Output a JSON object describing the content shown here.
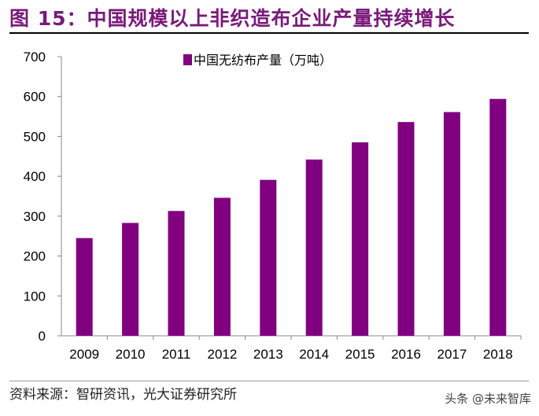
{
  "title": "图 15：中国规模以上非织造布企业产量持续增长",
  "source": "资料来源：智研资讯，光大证券研究所",
  "watermark": "头条 @未来智库",
  "chart_data": {
    "type": "bar",
    "categories": [
      "2009",
      "2010",
      "2011",
      "2012",
      "2013",
      "2014",
      "2015",
      "2016",
      "2017",
      "2018"
    ],
    "series": [
      {
        "name": "中国无纺布产量（万吨）",
        "values": [
          245,
          283,
          313,
          346,
          391,
          442,
          485,
          536,
          561,
          594
        ]
      }
    ],
    "ylim": [
      0,
      700
    ],
    "yticks": [
      0,
      100,
      200,
      300,
      400,
      500,
      600,
      700
    ],
    "legend": "top-center",
    "grid": false,
    "color": "#800080"
  }
}
